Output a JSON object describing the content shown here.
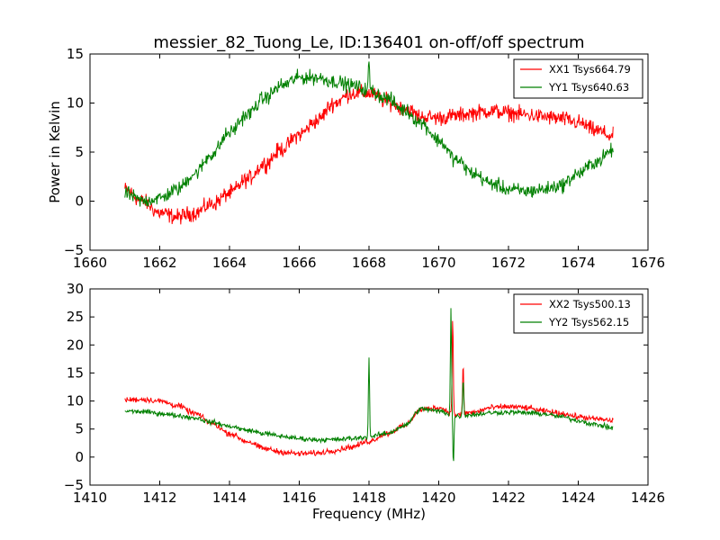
{
  "figure": {
    "title": "messier_82_Tuong_Le, ID:136401 on-off/off spectrum",
    "xlabel": "Frequency (MHz)"
  },
  "chart_data": [
    {
      "type": "line",
      "title": "messier_82_Tuong_Le, ID:136401 on-off/off spectrum",
      "xlabel": "",
      "ylabel": "Power in Kelvin",
      "xlim": [
        1660,
        1676
      ],
      "ylim": [
        -5,
        15
      ],
      "xticks": [
        "1660",
        "1662",
        "1664",
        "1666",
        "1668",
        "1670",
        "1672",
        "1674",
        "1676"
      ],
      "yticks": [
        "−5",
        "0",
        "5",
        "10",
        "15"
      ],
      "legend_position": "top-right",
      "grid": false,
      "series": [
        {
          "name": "XX1 Tsys664.79",
          "color": "#ff0000",
          "noise": 0.55,
          "x": [
            1661,
            1661.5,
            1662,
            1662.5,
            1663,
            1663.5,
            1664,
            1664.5,
            1665,
            1665.5,
            1666,
            1666.5,
            1667,
            1667.5,
            1668,
            1668.5,
            1669,
            1669.5,
            1670,
            1670.5,
            1671,
            1671.5,
            1672,
            1672.5,
            1673,
            1673.5,
            1674,
            1674.5,
            1675
          ],
          "y": [
            1.2,
            0,
            -1.2,
            -1.6,
            -1.2,
            -0.3,
            0.8,
            2.2,
            3.8,
            5.3,
            6.8,
            8.2,
            10,
            11,
            11,
            10.2,
            9.5,
            8.6,
            8.5,
            8.7,
            9,
            9.2,
            9,
            8.8,
            8.6,
            8.4,
            8,
            7.2,
            6.6
          ],
          "spikes": []
        },
        {
          "name": "YY1 Tsys640.63",
          "color": "#008000",
          "noise": 0.5,
          "x": [
            1661,
            1661.5,
            1662,
            1662.5,
            1663,
            1663.5,
            1664,
            1664.5,
            1665,
            1665.5,
            1666,
            1666.5,
            1667,
            1667.5,
            1668,
            1668.5,
            1669,
            1669.5,
            1670,
            1670.5,
            1671,
            1671.5,
            1672,
            1672.5,
            1673,
            1673.5,
            1674,
            1674.5,
            1675
          ],
          "y": [
            0.8,
            0,
            0.3,
            1.2,
            2.8,
            4.8,
            7,
            8.8,
            10.5,
            11.8,
            12.6,
            12.6,
            12.2,
            11.8,
            11.3,
            10.5,
            9.3,
            8,
            6.2,
            4.2,
            2.8,
            1.8,
            1.2,
            1,
            1.2,
            1.6,
            2.8,
            4,
            5.2
          ],
          "spikes": [
            {
              "x": 1668,
              "y": 14.5
            }
          ]
        }
      ]
    },
    {
      "type": "line",
      "xlabel": "Frequency (MHz)",
      "ylabel": "",
      "xlim": [
        1410,
        1426
      ],
      "ylim": [
        -5,
        30
      ],
      "xticks": [
        "1410",
        "1412",
        "1414",
        "1416",
        "1418",
        "1420",
        "1422",
        "1424",
        "1426"
      ],
      "yticks": [
        "−5",
        "0",
        "5",
        "10",
        "15",
        "20",
        "25",
        "30"
      ],
      "legend_position": "top-right",
      "grid": false,
      "series": [
        {
          "name": "XX2 Tsys500.13",
          "color": "#ff0000",
          "noise": 0.35,
          "x": [
            1411,
            1411.5,
            1412,
            1412.5,
            1413,
            1413.5,
            1414,
            1414.5,
            1415,
            1415.5,
            1416,
            1416.5,
            1417,
            1417.5,
            1418,
            1418.5,
            1419,
            1419.5,
            1420,
            1420.5,
            1421,
            1421.5,
            1422,
            1422.5,
            1423,
            1423.5,
            1424,
            1424.5,
            1425
          ],
          "y": [
            10.2,
            10.3,
            10,
            9.2,
            7.8,
            6,
            4.2,
            2.8,
            1.5,
            0.9,
            0.6,
            0.7,
            1.2,
            1.8,
            2.8,
            4.2,
            5.5,
            8.5,
            8.8,
            7.5,
            8,
            8.8,
            9,
            8.8,
            8.2,
            7.8,
            7.2,
            6.8,
            6.5
          ],
          "spikes": [
            {
              "x": 1420.4,
              "y": 25
            },
            {
              "x": 1420.7,
              "y": 16.5
            }
          ]
        },
        {
          "name": "YY2 Tsys562.15",
          "color": "#008000",
          "noise": 0.3,
          "x": [
            1411,
            1411.5,
            1412,
            1412.5,
            1413,
            1413.5,
            1414,
            1414.5,
            1415,
            1415.5,
            1416,
            1416.5,
            1417,
            1417.5,
            1418,
            1418.5,
            1419,
            1419.5,
            1420,
            1420.5,
            1421,
            1421.5,
            1422,
            1422.5,
            1423,
            1423.5,
            1424,
            1424.5,
            1425
          ],
          "y": [
            8.2,
            8.1,
            7.8,
            7.4,
            7,
            6.2,
            5.5,
            4.8,
            4.2,
            3.7,
            3.3,
            3.1,
            3.1,
            3.3,
            3.6,
            4.2,
            5.5,
            8.6,
            8.2,
            7.3,
            7.6,
            7.9,
            8,
            7.9,
            7.7,
            7.2,
            6.5,
            5.8,
            5.2
          ],
          "spikes": [
            {
              "x": 1418,
              "y": 18
            },
            {
              "x": 1420.35,
              "y": 26.5
            },
            {
              "x": 1420.42,
              "y": -1.5
            },
            {
              "x": 1420.7,
              "y": 14
            }
          ]
        }
      ]
    }
  ]
}
